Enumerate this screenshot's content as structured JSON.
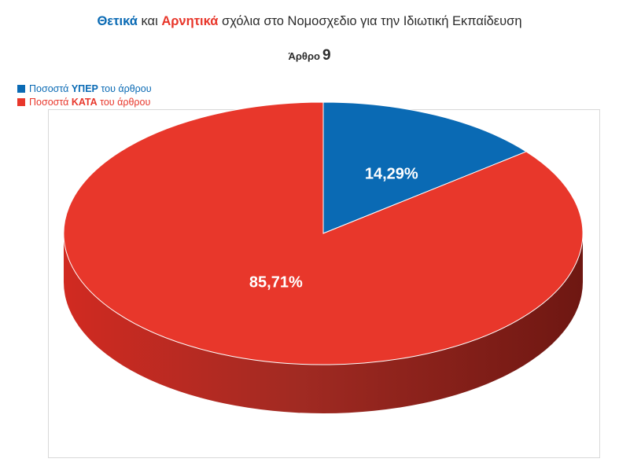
{
  "title": {
    "part1": "Θετικά",
    "part2": " και ",
    "part3": "Αρνητικά",
    "part4": " σχόλια στο Νομοσχεδιο για την Ιδιωτική Εκπαίδευση"
  },
  "subtitle": {
    "word": "Άρθρο",
    "number": "9"
  },
  "legend": [
    {
      "pre": "Ποσοστά ",
      "bold": "ΥΠΕΡ",
      "post": " του άρθρου",
      "color": "#0a6ab4"
    },
    {
      "pre": "Ποσοστά ",
      "bold": "ΚΑΤΑ",
      "post": " του άρθρου",
      "color": "#e8372b"
    }
  ],
  "chart_data": {
    "type": "pie",
    "style": "3d",
    "title": "Θετικά και Αρνητικά σχόλια στο Νομοσχεδιο για την Ιδιωτική Εκπαίδευση",
    "subtitle": "Άρθρο 9",
    "legend_position": "top-left",
    "slices": [
      {
        "label": "Ποσοστά ΥΠΕΡ του άρθρου",
        "value": 14.29,
        "display": "14,29%",
        "color": "#0a6ab4"
      },
      {
        "label": "Ποσοστά ΚΑΤΑ του άρθρου",
        "value": 85.71,
        "display": "85,71%",
        "color": "#e8372b"
      }
    ]
  }
}
